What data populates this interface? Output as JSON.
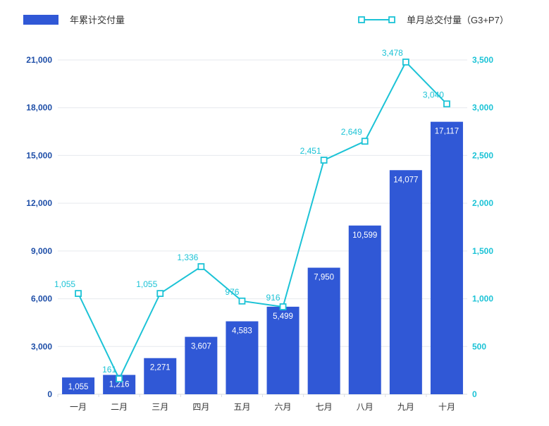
{
  "colors": {
    "bar": "#3058d6",
    "line": "#1cc3d6",
    "left_axis": "#1f4fa8",
    "grid": "#e6e9ee",
    "text": "#333333"
  },
  "chart_data": {
    "type": "bar",
    "categories": [
      "一月",
      "二月",
      "三月",
      "四月",
      "五月",
      "六月",
      "七月",
      "八月",
      "九月",
      "十月"
    ],
    "series": [
      {
        "name": "年累计交付量",
        "type": "bar",
        "axis": "left",
        "values": [
          1055,
          1216,
          2271,
          3607,
          4583,
          5499,
          7950,
          10599,
          14077,
          17117
        ],
        "labels": [
          "1,055",
          "1,216",
          "2,271",
          "3,607",
          "4,583",
          "5,499",
          "7,950",
          "10,599",
          "14,077",
          "17,117"
        ]
      },
      {
        "name": "单月总交付量（G3+P7）",
        "type": "line",
        "axis": "right",
        "values": [
          1055,
          161,
          1055,
          1336,
          976,
          916,
          2451,
          2649,
          3478,
          3040
        ],
        "labels": [
          "1,055",
          "161",
          "1,055",
          "1,336",
          "976",
          "916",
          "2,451",
          "2,649",
          "3,478",
          "3,040"
        ]
      }
    ],
    "y_left": {
      "ylim": [
        0,
        21000
      ],
      "ticks": [
        0,
        3000,
        6000,
        9000,
        12000,
        15000,
        18000,
        21000
      ],
      "tick_labels": [
        "0",
        "3,000",
        "6,000",
        "9,000",
        "12,000",
        "15,000",
        "18,000",
        "21,000"
      ]
    },
    "y_right": {
      "ylim": [
        0,
        3500
      ],
      "ticks": [
        0,
        500,
        1000,
        1500,
        2000,
        2500,
        3000,
        3500
      ],
      "tick_labels": [
        "0",
        "500",
        "1,000",
        "1,500",
        "2,000",
        "2,500",
        "3,000",
        "3,500"
      ]
    },
    "grid": true,
    "legend": "top"
  }
}
